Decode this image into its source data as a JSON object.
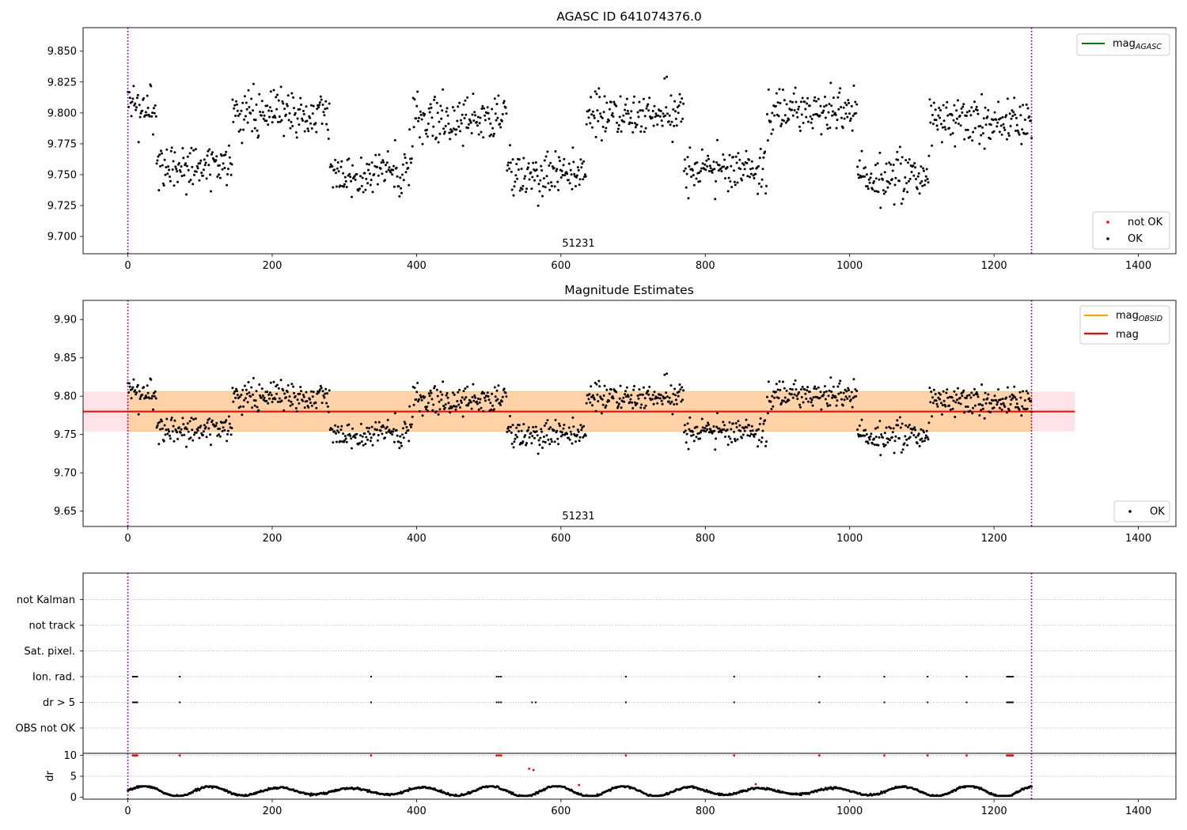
{
  "chart_data": [
    {
      "type": "scatter",
      "title": "AGASC ID 641074376.0",
      "xlim": [
        -62,
        1452
      ],
      "ylim": [
        9.686,
        9.869
      ],
      "xticks": [
        0,
        200,
        400,
        600,
        800,
        1000,
        1200,
        1400
      ],
      "yticks": [
        9.7,
        9.725,
        9.75,
        9.775,
        9.8,
        9.825,
        9.85
      ],
      "ytick_labels": [
        "9.700",
        "9.725",
        "9.750",
        "9.775",
        "9.800",
        "9.825",
        "9.850"
      ],
      "vlines": [
        0,
        1252
      ],
      "annotation": "51231",
      "legend_top": [
        {
          "label": "mag",
          "sub": "AGASC",
          "color": "#008000"
        }
      ],
      "legend_bottom": [
        {
          "label": "not OK",
          "color": "#ff0000"
        },
        {
          "label": "OK",
          "color": "#000000"
        }
      ],
      "series": [
        {
          "name": "OK",
          "color": "#000000",
          "model": {
            "x_range": [
              0,
              1252
            ],
            "n_points": 1252,
            "segments": [
              [
                0,
                40,
                9.803
              ],
              [
                40,
                145,
                9.757
              ],
              [
                145,
                280,
                9.799
              ],
              [
                280,
                395,
                9.752
              ],
              [
                395,
                525,
                9.796
              ],
              [
                525,
                635,
                9.751
              ],
              [
                635,
                770,
                9.799
              ],
              [
                770,
                885,
                9.755
              ],
              [
                885,
                1010,
                9.801
              ],
              [
                1010,
                1110,
                9.748
              ],
              [
                1110,
                1252,
                9.793
              ]
            ],
            "scatter_sd": 0.016,
            "y_extent": [
              9.715,
              9.838
            ]
          }
        },
        {
          "name": "not OK",
          "color": "#ff0000",
          "points": []
        }
      ]
    },
    {
      "type": "scatter",
      "title": "Magnitude Estimates",
      "xlim": [
        -62,
        1452
      ],
      "ylim": [
        9.63,
        9.925
      ],
      "xticks": [
        0,
        200,
        400,
        600,
        800,
        1000,
        1200,
        1400
      ],
      "yticks": [
        9.65,
        9.7,
        9.75,
        9.8,
        9.85,
        9.9
      ],
      "ytick_labels": [
        "9.65",
        "9.70",
        "9.75",
        "9.80",
        "9.85",
        "9.90"
      ],
      "vlines": [
        0,
        1252
      ],
      "annotation": "51231",
      "mag": 9.78,
      "band_mag": {
        "x_range": [
          -62,
          1312
        ],
        "y_range": [
          9.754,
          9.806
        ],
        "color": "#ffc0cb"
      },
      "band_obsid": {
        "x_range": [
          0,
          1252
        ],
        "y_range": [
          9.754,
          9.806
        ],
        "color": "#ffa500"
      },
      "legend_top": [
        {
          "label": "mag",
          "sub": "OBSID",
          "color": "#ffa500"
        },
        {
          "label": "mag",
          "color": "#ff0000"
        }
      ],
      "legend_bottom": [
        {
          "label": "OK",
          "color": "#000000"
        }
      ],
      "series": [
        {
          "name": "OK",
          "color": "#000000",
          "same_as_panel": 0
        }
      ]
    },
    {
      "type": "scatter",
      "title": "",
      "xlim": [
        -62,
        1452
      ],
      "categories": [
        "OBS not OK",
        "dr > 5",
        "Ion. rad.",
        "Sat. pixel.",
        "not track",
        "not Kalman"
      ],
      "vlines": [
        0,
        1252
      ],
      "series": [
        {
          "name": "dr > 5",
          "category": "dr > 5",
          "color": "#000000",
          "x": [
            7,
            9,
            11,
            13,
            72,
            337,
            511,
            514,
            517,
            560,
            565,
            690,
            840,
            958,
            1048,
            1108,
            1162,
            1218,
            1220,
            1222,
            1224,
            1226
          ]
        },
        {
          "name": "Ion. rad.",
          "category": "Ion. rad.",
          "color": "#000000",
          "x": [
            7,
            9,
            11,
            13,
            72,
            337,
            511,
            514,
            517,
            690,
            840,
            958,
            1048,
            1108,
            1162,
            1218,
            1220,
            1222,
            1224,
            1226
          ]
        }
      ]
    },
    {
      "type": "scatter",
      "title": "",
      "ylabel": "dr",
      "xlim": [
        -62,
        1452
      ],
      "ylim": [
        -0.5,
        10.5
      ],
      "yticks": [
        0,
        5,
        10
      ],
      "ytick_labels": [
        "0",
        "5",
        "10"
      ],
      "xticks": [
        0,
        200,
        400,
        600,
        800,
        1000,
        1200,
        1400
      ],
      "vlines": [
        0,
        1252
      ],
      "series": [
        {
          "name": "dr",
          "color": "#000000",
          "model": {
            "x_range": [
              0,
              1252
            ],
            "n_points": 1252,
            "waves": [
              [
                1.0,
                1.0,
                95.0
              ],
              [
                0.3,
                0.45,
                37.0
              ]
            ],
            "mean": 1.4,
            "y_extent": [
              0.3,
              2.6
            ]
          }
        },
        {
          "name": "not OK",
          "color": "#ff0000",
          "x": [
            7,
            9,
            11,
            13,
            72,
            337,
            511,
            514,
            517,
            556,
            562,
            625,
            690,
            840,
            870,
            958,
            1048,
            1108,
            1162,
            1218,
            1220,
            1222,
            1224,
            1226
          ],
          "y": [
            10,
            10,
            10,
            10,
            10,
            10,
            10,
            10,
            10,
            6.8,
            6.5,
            2.9,
            10,
            10,
            3.1,
            10,
            10,
            10,
            10,
            10,
            10,
            10,
            10,
            10
          ]
        }
      ]
    }
  ]
}
